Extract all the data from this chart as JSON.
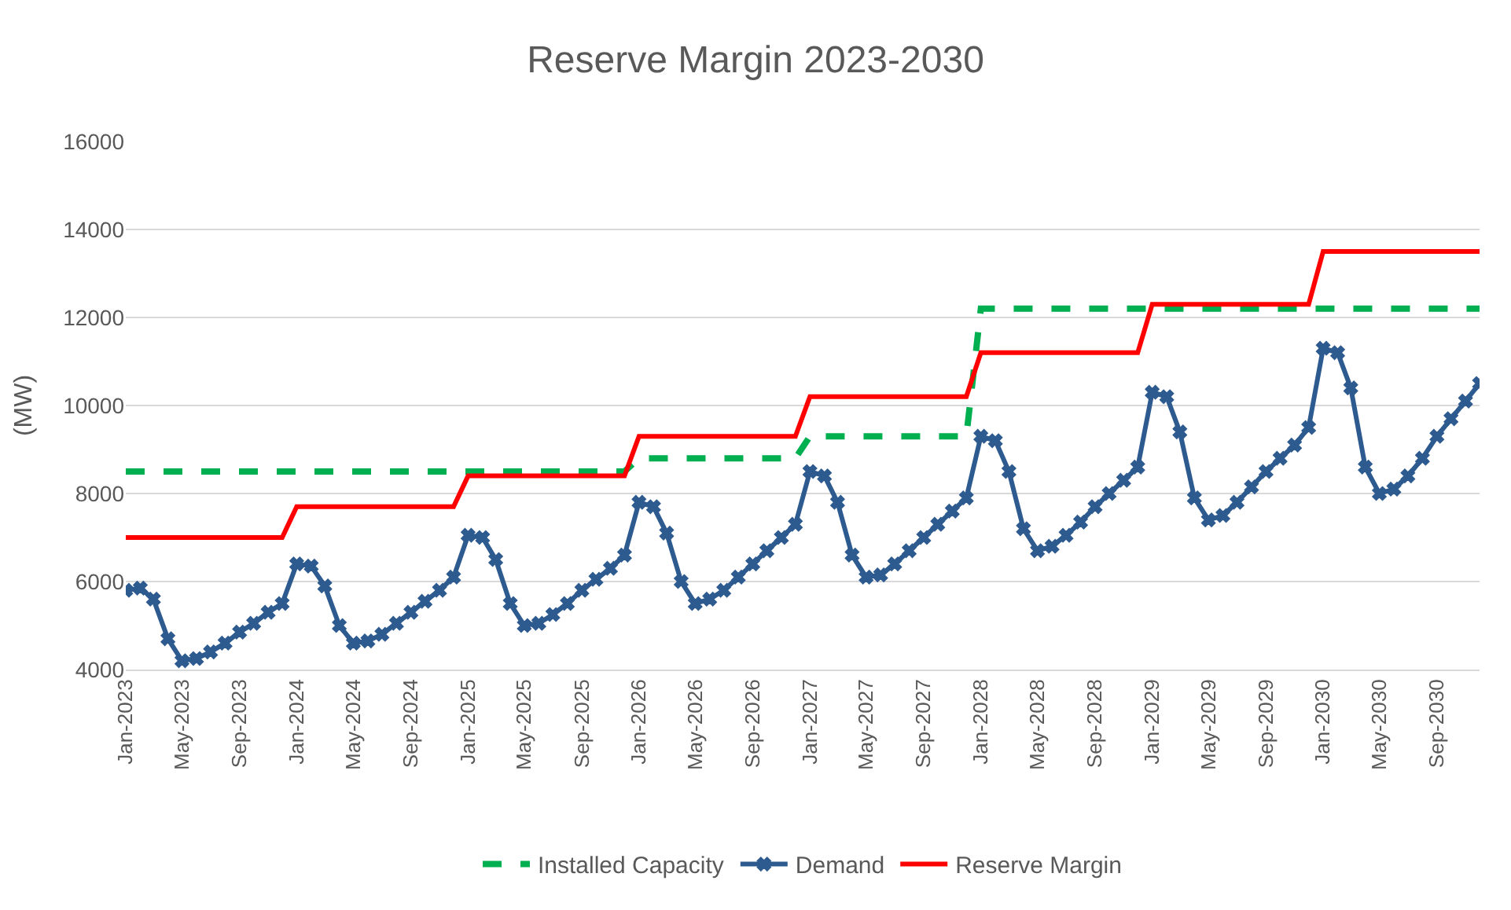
{
  "chart_data": {
    "type": "line",
    "title": "Reserve Margin 2023-2030",
    "ylabel": "(MW)",
    "x": [
      "2023-01",
      "2023-02",
      "2023-03",
      "2023-04",
      "2023-05",
      "2023-06",
      "2023-07",
      "2023-08",
      "2023-09",
      "2023-10",
      "2023-11",
      "2023-12",
      "2024-01",
      "2024-02",
      "2024-03",
      "2024-04",
      "2024-05",
      "2024-06",
      "2024-07",
      "2024-08",
      "2024-09",
      "2024-10",
      "2024-11",
      "2024-12",
      "2025-01",
      "2025-02",
      "2025-03",
      "2025-04",
      "2025-05",
      "2025-06",
      "2025-07",
      "2025-08",
      "2025-09",
      "2025-10",
      "2025-11",
      "2025-12",
      "2026-01",
      "2026-02",
      "2026-03",
      "2026-04",
      "2026-05",
      "2026-06",
      "2026-07",
      "2026-08",
      "2026-09",
      "2026-10",
      "2026-11",
      "2026-12",
      "2027-01",
      "2027-02",
      "2027-03",
      "2027-04",
      "2027-05",
      "2027-06",
      "2027-07",
      "2027-08",
      "2027-09",
      "2027-10",
      "2027-11",
      "2027-12",
      "2028-01",
      "2028-02",
      "2028-03",
      "2028-04",
      "2028-05",
      "2028-06",
      "2028-07",
      "2028-08",
      "2028-09",
      "2028-10",
      "2028-11",
      "2028-12",
      "2029-01",
      "2029-02",
      "2029-03",
      "2029-04",
      "2029-05",
      "2029-06",
      "2029-07",
      "2029-08",
      "2029-09",
      "2029-10",
      "2029-11",
      "2029-12",
      "2030-01",
      "2030-02",
      "2030-03",
      "2030-04",
      "2030-05",
      "2030-06",
      "2030-07",
      "2030-08",
      "2030-09",
      "2030-10",
      "2030-11",
      "2030-12"
    ],
    "series": [
      {
        "name": "Installed Capacity",
        "color": "#00b050",
        "line_style": "dashed",
        "marker": "none",
        "values": [
          8500,
          8500,
          8500,
          8500,
          8500,
          8500,
          8500,
          8500,
          8500,
          8500,
          8500,
          8500,
          8500,
          8500,
          8500,
          8500,
          8500,
          8500,
          8500,
          8500,
          8500,
          8500,
          8500,
          8500,
          8500,
          8500,
          8500,
          8500,
          8500,
          8500,
          8500,
          8500,
          8500,
          8500,
          8500,
          8500,
          8800,
          8800,
          8800,
          8800,
          8800,
          8800,
          8800,
          8800,
          8800,
          8800,
          8800,
          8800,
          9300,
          9300,
          9300,
          9300,
          9300,
          9300,
          9300,
          9300,
          9300,
          9300,
          9300,
          9300,
          12200,
          12200,
          12200,
          12200,
          12200,
          12200,
          12200,
          12200,
          12200,
          12200,
          12200,
          12200,
          12200,
          12200,
          12200,
          12200,
          12200,
          12200,
          12200,
          12200,
          12200,
          12200,
          12200,
          12200,
          12200,
          12200,
          12200,
          12200,
          12200,
          12200,
          12200,
          12200,
          12200,
          12200,
          12200,
          12200
        ]
      },
      {
        "name": "Demand",
        "color": "#2e5b8f",
        "line_style": "solid",
        "marker": "cross",
        "values": [
          5800,
          5850,
          5600,
          4700,
          4200,
          4250,
          4400,
          4600,
          4850,
          5050,
          5300,
          5500,
          6400,
          6350,
          5900,
          5000,
          4600,
          4650,
          4800,
          5050,
          5300,
          5550,
          5800,
          6100,
          7050,
          7000,
          6500,
          5500,
          5000,
          5050,
          5250,
          5500,
          5800,
          6050,
          6300,
          6600,
          7800,
          7700,
          7100,
          6000,
          5500,
          5600,
          5800,
          6100,
          6400,
          6700,
          7000,
          7300,
          8500,
          8400,
          7800,
          6600,
          6100,
          6150,
          6400,
          6700,
          7000,
          7300,
          7600,
          7900,
          9300,
          9200,
          8500,
          7200,
          6700,
          6800,
          7050,
          7350,
          7700,
          8000,
          8300,
          8600,
          10300,
          10200,
          9400,
          7900,
          7400,
          7500,
          7800,
          8150,
          8500,
          8800,
          9100,
          9500,
          11300,
          11200,
          10400,
          8600,
          8000,
          8100,
          8400,
          8800,
          9300,
          9700,
          10100,
          10500
        ]
      },
      {
        "name": "Reserve Margin",
        "color": "#ff0000",
        "line_style": "solid",
        "marker": "none",
        "values": [
          7000,
          7000,
          7000,
          7000,
          7000,
          7000,
          7000,
          7000,
          7000,
          7000,
          7000,
          7000,
          7700,
          7700,
          7700,
          7700,
          7700,
          7700,
          7700,
          7700,
          7700,
          7700,
          7700,
          7700,
          8400,
          8400,
          8400,
          8400,
          8400,
          8400,
          8400,
          8400,
          8400,
          8400,
          8400,
          8400,
          9300,
          9300,
          9300,
          9300,
          9300,
          9300,
          9300,
          9300,
          9300,
          9300,
          9300,
          9300,
          10200,
          10200,
          10200,
          10200,
          10200,
          10200,
          10200,
          10200,
          10200,
          10200,
          10200,
          10200,
          11200,
          11200,
          11200,
          11200,
          11200,
          11200,
          11200,
          11200,
          11200,
          11200,
          11200,
          11200,
          12300,
          12300,
          12300,
          12300,
          12300,
          12300,
          12300,
          12300,
          12300,
          12300,
          12300,
          12300,
          13500,
          13500,
          13500,
          13500,
          13500,
          13500,
          13500,
          13500,
          13500,
          13500,
          13500,
          13500
        ]
      }
    ],
    "xlim": [
      "2023-01",
      "2030-12"
    ],
    "xticks": [
      {
        "value": "2023-01",
        "label": "Jan-2023"
      },
      {
        "value": "2023-05",
        "label": "May-2023"
      },
      {
        "value": "2023-09",
        "label": "Sep-2023"
      },
      {
        "value": "2024-01",
        "label": "Jan-2024"
      },
      {
        "value": "2024-05",
        "label": "May-2024"
      },
      {
        "value": "2024-09",
        "label": "Sep-2024"
      },
      {
        "value": "2025-01",
        "label": "Jan-2025"
      },
      {
        "value": "2025-05",
        "label": "May-2025"
      },
      {
        "value": "2025-09",
        "label": "Sep-2025"
      },
      {
        "value": "2026-01",
        "label": "Jan-2026"
      },
      {
        "value": "2026-05",
        "label": "May-2026"
      },
      {
        "value": "2026-09",
        "label": "Sep-2026"
      },
      {
        "value": "2027-01",
        "label": "Jan-2027"
      },
      {
        "value": "2027-05",
        "label": "May-2027"
      },
      {
        "value": "2027-09",
        "label": "Sep-2027"
      },
      {
        "value": "2028-01",
        "label": "Jan-2028"
      },
      {
        "value": "2028-05",
        "label": "May-2028"
      },
      {
        "value": "2028-09",
        "label": "Sep-2028"
      },
      {
        "value": "2029-01",
        "label": "Jan-2029"
      },
      {
        "value": "2029-05",
        "label": "May-2029"
      },
      {
        "value": "2029-09",
        "label": "Sep-2029"
      },
      {
        "value": "2030-01",
        "label": "Jan-2030"
      },
      {
        "value": "2030-05",
        "label": "May-2030"
      },
      {
        "value": "2030-09",
        "label": "Sep-2030"
      }
    ],
    "ylim": [
      4000,
      16000
    ],
    "yticks": [
      4000,
      6000,
      8000,
      10000,
      12000,
      14000,
      16000
    ],
    "grid": "y",
    "legend": "bottom"
  }
}
